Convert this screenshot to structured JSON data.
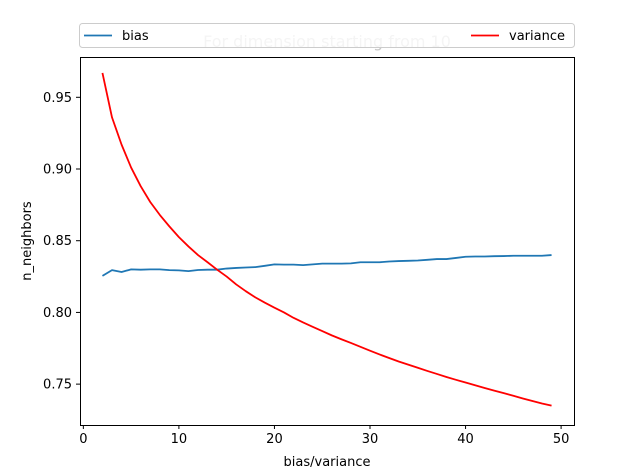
{
  "chart_data": {
    "type": "line",
    "title": "For dimension starting from 10",
    "xlabel": "bias/variance",
    "ylabel": "n_neighbors",
    "xlim": [
      -0.35,
      51.35
    ],
    "ylim": [
      0.7215,
      0.9781
    ],
    "xticks": [
      0,
      10,
      20,
      30,
      40,
      50
    ],
    "xtick_labels": [
      "0",
      "10",
      "20",
      "30",
      "40",
      "50"
    ],
    "yticks": [
      0.75,
      0.8,
      0.85,
      0.9,
      0.95
    ],
    "ytick_labels": [
      "0.75",
      "0.80",
      "0.85",
      "0.90",
      "0.95"
    ],
    "grid": false,
    "legend_placement": "top, outside plot (spanning width)",
    "x": [
      2,
      3,
      4,
      5,
      6,
      7,
      8,
      9,
      10,
      11,
      12,
      13,
      14,
      15,
      16,
      17,
      18,
      19,
      20,
      21,
      22,
      23,
      24,
      25,
      26,
      27,
      28,
      29,
      30,
      31,
      32,
      33,
      34,
      35,
      36,
      37,
      38,
      39,
      40,
      41,
      42,
      43,
      44,
      45,
      46,
      47,
      48,
      49
    ],
    "series": [
      {
        "name": "bias",
        "color": "#1f77b4",
        "values": [
          0.8255,
          0.8295,
          0.8282,
          0.83,
          0.8298,
          0.83,
          0.83,
          0.8295,
          0.8293,
          0.8288,
          0.8296,
          0.8298,
          0.8298,
          0.8306,
          0.831,
          0.8313,
          0.8316,
          0.8325,
          0.8335,
          0.8333,
          0.8333,
          0.833,
          0.8335,
          0.834,
          0.834,
          0.834,
          0.8342,
          0.835,
          0.835,
          0.835,
          0.8355,
          0.8358,
          0.836,
          0.8362,
          0.8367,
          0.8372,
          0.8372,
          0.838,
          0.8388,
          0.839,
          0.839,
          0.8392,
          0.8393,
          0.8395,
          0.8395,
          0.8395,
          0.8395,
          0.84
        ]
      },
      {
        "name": "variance",
        "color": "#ff0000",
        "values": [
          0.967,
          0.936,
          0.917,
          0.901,
          0.888,
          0.877,
          0.868,
          0.86,
          0.8525,
          0.846,
          0.84,
          0.835,
          0.8298,
          0.825,
          0.8195,
          0.8148,
          0.8105,
          0.8068,
          0.8033,
          0.8,
          0.7962,
          0.793,
          0.79,
          0.787,
          0.784,
          0.7813,
          0.7787,
          0.776,
          0.7733,
          0.7707,
          0.7682,
          0.7658,
          0.7636,
          0.7614,
          0.7592,
          0.7571,
          0.755,
          0.753,
          0.7511,
          0.7492,
          0.7473,
          0.7455,
          0.7437,
          0.7419,
          0.74,
          0.7382,
          0.7365,
          0.735
        ]
      }
    ]
  }
}
